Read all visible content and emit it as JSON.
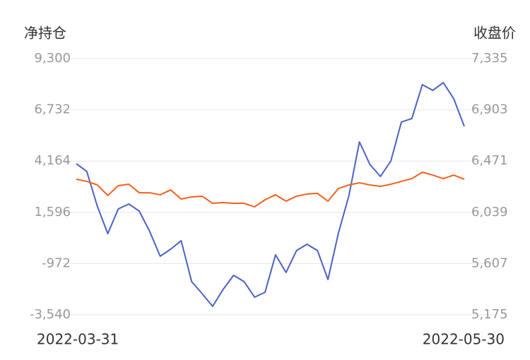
{
  "chart_data": {
    "type": "line",
    "y_label": "净持仓",
    "y2_label": "收盘价",
    "categories": [
      "2022-03-31",
      null,
      null,
      null,
      null,
      null,
      null,
      null,
      null,
      null,
      null,
      null,
      null,
      null,
      null,
      null,
      null,
      null,
      null,
      null,
      null,
      null,
      null,
      null,
      null,
      null,
      null,
      null,
      null,
      null,
      null,
      null,
      null,
      null,
      null,
      null,
      null,
      "2022-05-30"
    ],
    "series": [
      {
        "color": "#4a62c4",
        "axis": "y",
        "values": [
          4030,
          3641,
          1908,
          528,
          1766,
          2014,
          1660,
          634,
          -604,
          -250,
          175,
          -1877,
          -2478,
          -3115,
          -2266,
          -1559,
          -1877,
          -2655,
          -2407,
          -533,
          -1417,
          -321,
          -2,
          -321,
          -1771,
          564,
          2438,
          5126,
          3994,
          3393,
          4171,
          6117,
          6294,
          7991,
          7708,
          8097,
          7284,
          5904
        ]
      },
      {
        "color": "#f4601a",
        "axis": "y2",
        "values": [
          6318,
          6300,
          6270,
          6181,
          6264,
          6276,
          6204,
          6204,
          6187,
          6228,
          6151,
          6169,
          6175,
          6115,
          6121,
          6115,
          6115,
          6085,
          6145,
          6187,
          6133,
          6175,
          6193,
          6199,
          6133,
          6240,
          6270,
          6288,
          6270,
          6258,
          6276,
          6300,
          6323,
          6377,
          6353,
          6323,
          6353,
          6318
        ]
      }
    ],
    "ylim": [
      -3540,
      9300
    ],
    "yticks": [
      {
        "value": 9300,
        "label": "9,300"
      },
      {
        "value": 6732,
        "label": "6,732"
      },
      {
        "value": 4164,
        "label": "4,164"
      },
      {
        "value": 1596,
        "label": "1,596"
      },
      -972,
      {
        "value": -3540,
        "label": "-3,540"
      }
    ],
    "y2lim": [
      5175,
      7335
    ],
    "y2ticks": [
      {
        "value": 7335,
        "label": "7,335"
      },
      {
        "value": 6903,
        "label": "6,903"
      },
      {
        "value": 6471,
        "label": "6,471"
      },
      {
        "value": 6039,
        "label": "6,039"
      },
      {
        "value": 5607,
        "label": "5,607"
      },
      {
        "value": 5175,
        "label": "5,175"
      }
    ],
    "grid": true
  }
}
